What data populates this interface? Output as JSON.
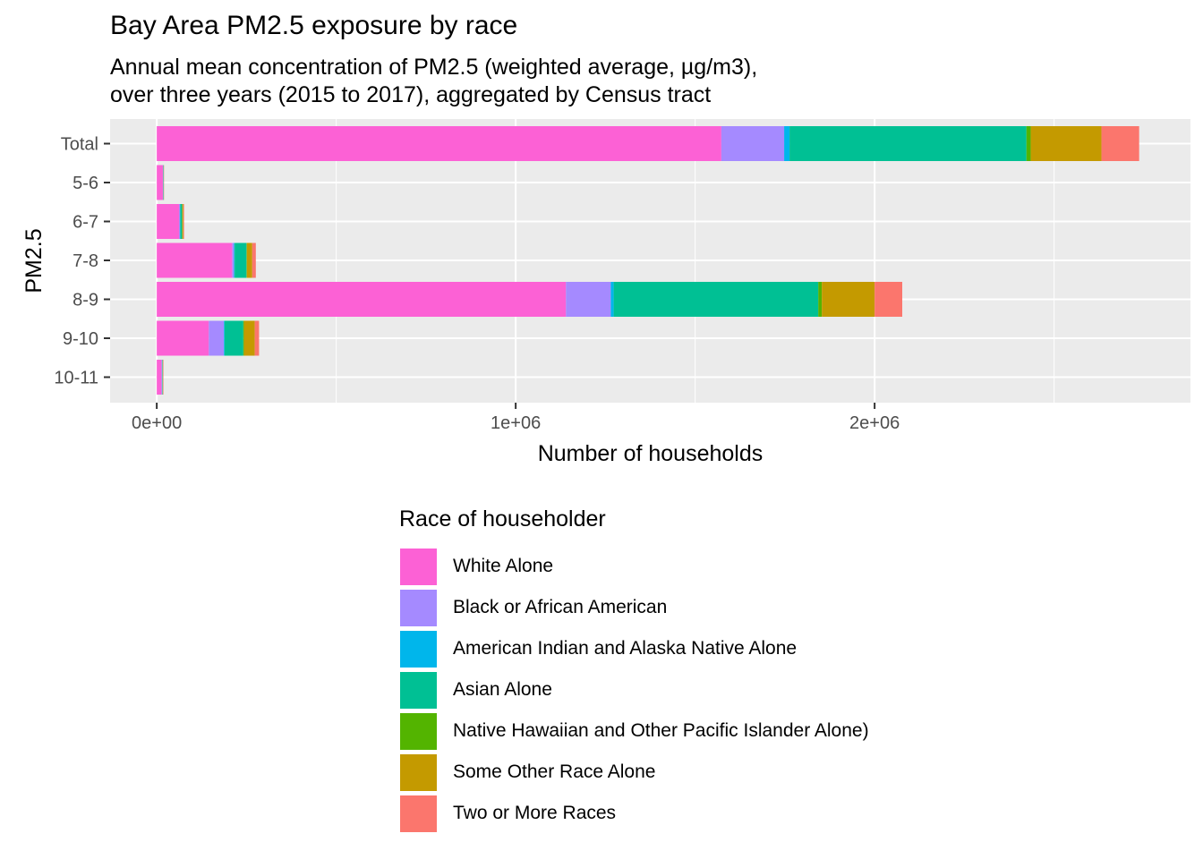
{
  "chart_data": {
    "type": "bar",
    "orientation": "horizontal",
    "stacked": true,
    "title": "Bay Area PM2.5 exposure by race",
    "subtitle": [
      "Annual mean concentration of PM2.5 (weighted average, µg/m3),",
      "over three years (2015 to 2017), aggregated by Census tract"
    ],
    "xlabel": "Number of households",
    "ylabel": "PM2.5",
    "xlim": [
      -130000,
      2880000
    ],
    "x_ticks": [
      {
        "value": 0,
        "label": "0e+00"
      },
      {
        "value": 1000000,
        "label": "1e+06"
      },
      {
        "value": 2000000,
        "label": "2e+06"
      }
    ],
    "x_minor_ticks": [
      500000,
      1500000,
      2500000
    ],
    "grid": true,
    "categories": [
      "Total",
      "5-6",
      "6-7",
      "7-8",
      "8-9",
      "9-10",
      "10-11"
    ],
    "legend": {
      "title": "Race of householder",
      "position": "bottom"
    },
    "series": [
      {
        "name": "White Alone",
        "color": "#FC61D5",
        "values": [
          1573000,
          17000,
          62000,
          210000,
          1140000,
          145000,
          13000
        ]
      },
      {
        "name": "Black or African American",
        "color": "#A58AFF",
        "values": [
          175000,
          1000,
          3000,
          5000,
          125000,
          42000,
          2000
        ]
      },
      {
        "name": "American Indian and Alaska Native Alone",
        "color": "#00B6EB",
        "values": [
          15000,
          200,
          500,
          2000,
          8000,
          2000,
          500
        ]
      },
      {
        "name": "Asian Alone",
        "color": "#00C094",
        "values": [
          660000,
          1000,
          5000,
          33000,
          570000,
          52000,
          1000
        ]
      },
      {
        "name": "Native Hawaiian and Other Pacific Islander Alone)",
        "color": "#53B400",
        "values": [
          12000,
          100,
          500,
          1000,
          10000,
          2000,
          200
        ]
      },
      {
        "name": "Some Other Race Alone",
        "color": "#C49A00",
        "values": [
          197000,
          500,
          3000,
          15000,
          147000,
          30000,
          1000
        ]
      },
      {
        "name": "Two or More Races",
        "color": "#FB766D",
        "values": [
          105000,
          500,
          2000,
          10000,
          77000,
          12000,
          1000
        ]
      }
    ]
  }
}
